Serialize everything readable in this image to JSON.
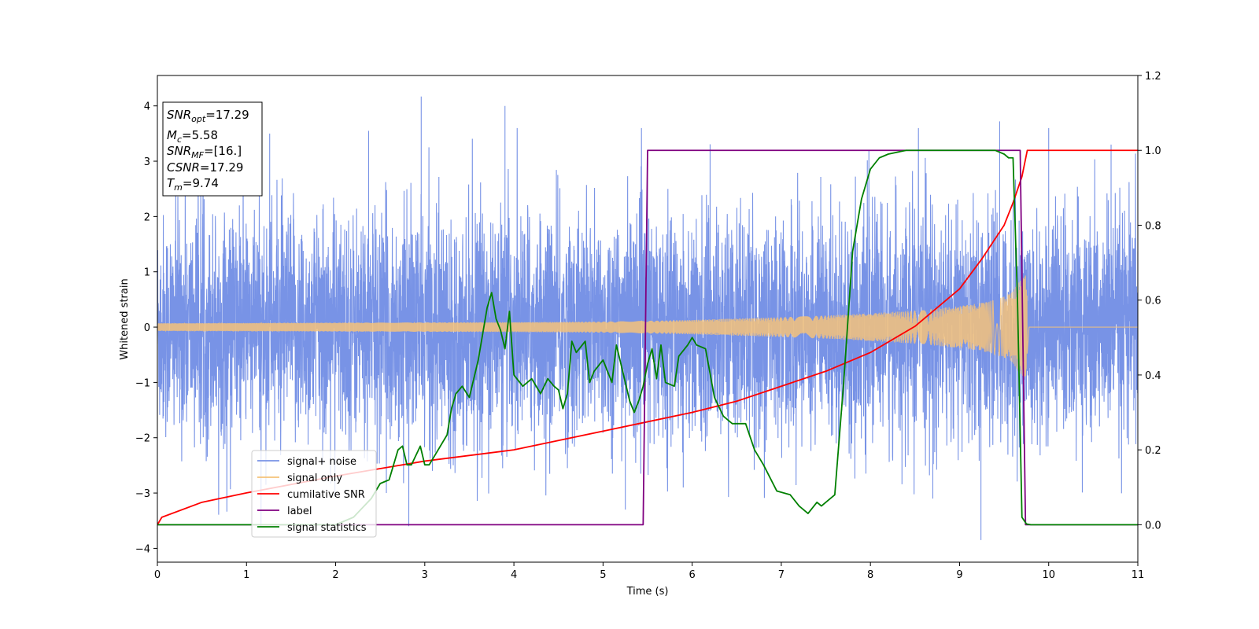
{
  "chart_data": {
    "type": "line",
    "xlabel": "Time (s)",
    "ylabel": "Whitened strain",
    "xlim": [
      0,
      11
    ],
    "ylim": [
      -4.25,
      4.55
    ],
    "y2lim": [
      -0.1,
      1.2
    ],
    "xticks": [
      "0",
      "1",
      "2",
      "3",
      "4",
      "5",
      "6",
      "7",
      "8",
      "9",
      "10",
      "11"
    ],
    "yticks": [
      "−4",
      "−3",
      "−2",
      "−1",
      "0",
      "1",
      "2",
      "3",
      "4"
    ],
    "y2ticks": [
      "0.0",
      "0.2",
      "0.4",
      "0.6",
      "0.8",
      "1.0",
      "1.2"
    ],
    "grid": false,
    "legend_placement": "lower-left",
    "series": [
      {
        "name": "signal+ noise",
        "axis": "left",
        "color": "#7893e6",
        "kind": "noise",
        "noise_sigma": 1.0,
        "notable_extremes": [
          [
            0.92,
            2.2
          ],
          [
            1.26,
            3.5
          ],
          [
            2.37,
            3.55
          ],
          [
            2.96,
            4.17
          ],
          [
            3.9,
            4.0
          ],
          [
            5.25,
            -3.3
          ],
          [
            5.9,
            -2.9
          ],
          [
            9.24,
            -3.85
          ],
          [
            9.45,
            3.72
          ],
          [
            10.0,
            3.6
          ],
          [
            10.7,
            3.3
          ],
          [
            8.7,
            -3.1
          ]
        ]
      },
      {
        "name": "signal only",
        "axis": "left",
        "color": "#f5c27a",
        "kind": "chirp_envelope",
        "x": [
          0,
          1,
          2,
          3,
          4,
          5,
          6,
          7,
          7.5,
          8,
          8.5,
          9.0,
          9.3,
          9.5,
          9.6,
          9.7,
          9.74,
          9.78,
          11
        ],
        "amplitude": [
          0.07,
          0.075,
          0.08,
          0.085,
          0.09,
          0.1,
          0.13,
          0.18,
          0.21,
          0.25,
          0.3,
          0.38,
          0.45,
          0.55,
          0.65,
          0.9,
          1.0,
          0.0,
          0.0
        ]
      },
      {
        "name": "cumilative SNR",
        "axis": "right",
        "color": "#ff0000",
        "x": [
          0,
          0.05,
          0.5,
          1,
          2,
          3,
          4,
          5,
          5.5,
          6,
          6.5,
          7,
          7.5,
          8,
          8.5,
          9.0,
          9.25,
          9.5,
          9.6,
          9.7,
          9.76,
          11
        ],
        "values": [
          0.0,
          0.02,
          0.06,
          0.085,
          0.13,
          0.17,
          0.2,
          0.25,
          0.275,
          0.3,
          0.33,
          0.37,
          0.41,
          0.46,
          0.53,
          0.63,
          0.71,
          0.8,
          0.86,
          0.93,
          1.0,
          1.0
        ]
      },
      {
        "name": "label",
        "axis": "right",
        "color": "#800080",
        "x": [
          0,
          5.45,
          5.5,
          9.68,
          9.74,
          11
        ],
        "values": [
          0.0,
          0.0,
          1.0,
          1.0,
          0.0,
          0.0
        ]
      },
      {
        "name": "signal statistics",
        "axis": "right",
        "color": "#008000",
        "x": [
          0,
          0.5,
          1,
          1.5,
          2,
          2.2,
          2.4,
          2.5,
          2.6,
          2.7,
          2.75,
          2.8,
          2.85,
          2.95,
          3.0,
          3.05,
          3.15,
          3.25,
          3.3,
          3.35,
          3.42,
          3.5,
          3.6,
          3.7,
          3.75,
          3.8,
          3.85,
          3.9,
          3.95,
          4.0,
          4.1,
          4.2,
          4.3,
          4.38,
          4.45,
          4.5,
          4.55,
          4.6,
          4.65,
          4.7,
          4.8,
          4.85,
          4.9,
          5.0,
          5.1,
          5.15,
          5.2,
          5.3,
          5.35,
          5.4,
          5.45,
          5.5,
          5.55,
          5.6,
          5.65,
          5.7,
          5.8,
          5.85,
          5.95,
          6.0,
          6.05,
          6.15,
          6.25,
          6.35,
          6.45,
          6.6,
          6.7,
          6.8,
          6.95,
          7.1,
          7.2,
          7.25,
          7.3,
          7.4,
          7.45,
          7.5,
          7.6,
          7.7,
          7.8,
          7.9,
          8.0,
          8.1,
          8.2,
          8.4,
          8.6,
          8.8,
          9.0,
          9.2,
          9.4,
          9.5,
          9.55,
          9.6,
          9.65,
          9.7,
          9.75,
          9.8,
          9.9,
          11
        ],
        "values": [
          0.0,
          0.0,
          0.0,
          0.0,
          0.0,
          0.02,
          0.07,
          0.11,
          0.12,
          0.2,
          0.21,
          0.16,
          0.16,
          0.21,
          0.16,
          0.16,
          0.2,
          0.24,
          0.31,
          0.35,
          0.37,
          0.34,
          0.44,
          0.58,
          0.62,
          0.55,
          0.52,
          0.47,
          0.57,
          0.4,
          0.37,
          0.39,
          0.35,
          0.39,
          0.37,
          0.36,
          0.31,
          0.35,
          0.49,
          0.46,
          0.49,
          0.38,
          0.41,
          0.44,
          0.38,
          0.48,
          0.43,
          0.33,
          0.3,
          0.33,
          0.37,
          0.43,
          0.47,
          0.39,
          0.48,
          0.38,
          0.37,
          0.45,
          0.48,
          0.5,
          0.48,
          0.47,
          0.34,
          0.29,
          0.27,
          0.27,
          0.2,
          0.16,
          0.09,
          0.08,
          0.05,
          0.04,
          0.03,
          0.06,
          0.05,
          0.06,
          0.08,
          0.38,
          0.73,
          0.87,
          0.95,
          0.98,
          0.99,
          1.0,
          1.0,
          1.0,
          1.0,
          1.0,
          1.0,
          0.99,
          0.98,
          0.98,
          0.6,
          0.02,
          0.002,
          0.0,
          0.0,
          0.0
        ]
      }
    ],
    "annotations": [
      {
        "base": "SNR",
        "sub": "opt",
        "rest": "=17.29"
      },
      {
        "base": "M",
        "sub": "c",
        "rest": "=5.58"
      },
      {
        "base": "SNR",
        "sub": "MF",
        "rest": "=[16.]"
      },
      {
        "base": "CSNR",
        "sub": "",
        "rest": "=17.29"
      },
      {
        "base": "T",
        "sub": "m",
        "rest": "=9.74"
      }
    ]
  }
}
